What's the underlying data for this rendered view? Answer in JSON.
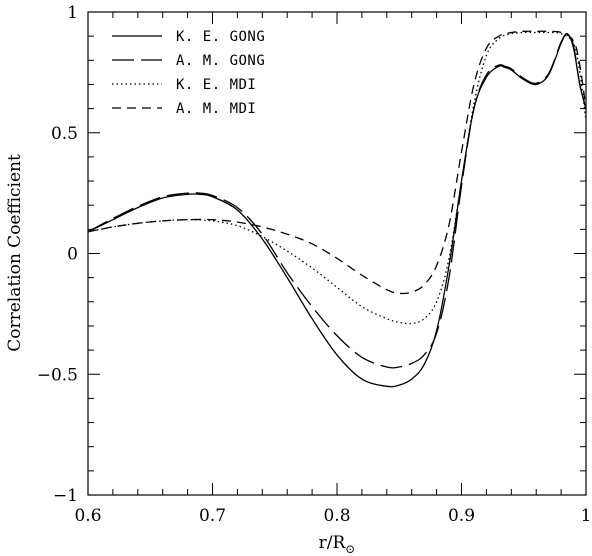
{
  "chart_data": {
    "type": "line",
    "title": "",
    "xlabel": "r/R",
    "xlabel_subscript": "⊙",
    "ylabel": "Correlation Coefficient",
    "xlim": [
      0.6,
      1.0
    ],
    "ylim": [
      -1,
      1
    ],
    "grid": false,
    "legend_position": "top-left",
    "x_ticks": [
      {
        "value": 0.6,
        "label": "0.6"
      },
      {
        "value": 0.7,
        "label": "0.7"
      },
      {
        "value": 0.8,
        "label": "0.8"
      },
      {
        "value": 0.9,
        "label": "0.9"
      },
      {
        "value": 1.0,
        "label": "1"
      }
    ],
    "y_ticks": [
      {
        "value": 1,
        "label": "1"
      },
      {
        "value": 0.5,
        "label": "0.5"
      },
      {
        "value": 0,
        "label": "0"
      },
      {
        "value": -0.5,
        "label": "−0.5"
      },
      {
        "value": -1,
        "label": "−1"
      }
    ],
    "series": [
      {
        "name": "K. E. GONG",
        "style": "solid",
        "x": [
          0.6,
          0.62,
          0.64,
          0.66,
          0.68,
          0.69,
          0.7,
          0.72,
          0.74,
          0.76,
          0.78,
          0.8,
          0.82,
          0.84,
          0.85,
          0.86,
          0.87,
          0.88,
          0.89,
          0.9,
          0.91,
          0.92,
          0.93,
          0.935,
          0.94,
          0.95,
          0.96,
          0.97,
          0.98,
          0.985,
          0.99,
          0.995,
          1.0
        ],
        "y": [
          0.09,
          0.14,
          0.19,
          0.23,
          0.245,
          0.245,
          0.235,
          0.18,
          0.06,
          -0.1,
          -0.27,
          -0.42,
          -0.52,
          -0.55,
          -0.545,
          -0.52,
          -0.46,
          -0.32,
          -0.05,
          0.3,
          0.6,
          0.73,
          0.775,
          0.77,
          0.76,
          0.72,
          0.7,
          0.74,
          0.87,
          0.91,
          0.85,
          0.7,
          0.6
        ]
      },
      {
        "name": "A. M. GONG",
        "style": "longdash",
        "x": [
          0.6,
          0.62,
          0.64,
          0.66,
          0.68,
          0.69,
          0.7,
          0.72,
          0.74,
          0.76,
          0.78,
          0.8,
          0.82,
          0.84,
          0.85,
          0.86,
          0.87,
          0.88,
          0.89,
          0.9,
          0.91,
          0.92,
          0.93,
          0.935,
          0.94,
          0.95,
          0.96,
          0.97,
          0.98,
          0.985,
          0.99,
          0.995,
          1.0
        ],
        "y": [
          0.09,
          0.145,
          0.195,
          0.235,
          0.25,
          0.25,
          0.24,
          0.19,
          0.08,
          -0.08,
          -0.22,
          -0.34,
          -0.43,
          -0.47,
          -0.47,
          -0.455,
          -0.42,
          -0.33,
          -0.1,
          0.28,
          0.6,
          0.74,
          0.78,
          0.775,
          0.765,
          0.725,
          0.705,
          0.745,
          0.875,
          0.91,
          0.86,
          0.7,
          0.6
        ]
      },
      {
        "name": "K. E. MDI",
        "style": "dotted",
        "x": [
          0.6,
          0.62,
          0.64,
          0.66,
          0.68,
          0.7,
          0.72,
          0.74,
          0.76,
          0.78,
          0.8,
          0.82,
          0.84,
          0.85,
          0.86,
          0.87,
          0.88,
          0.89,
          0.9,
          0.91,
          0.92,
          0.93,
          0.94,
          0.95,
          0.96,
          0.97,
          0.98,
          0.99,
          0.995,
          1.0
        ],
        "y": [
          0.09,
          0.11,
          0.125,
          0.135,
          0.14,
          0.135,
          0.115,
          0.07,
          0.01,
          -0.06,
          -0.14,
          -0.22,
          -0.27,
          -0.285,
          -0.29,
          -0.27,
          -0.2,
          -0.02,
          0.3,
          0.62,
          0.82,
          0.89,
          0.91,
          0.915,
          0.915,
          0.915,
          0.91,
          0.87,
          0.75,
          0.55
        ]
      },
      {
        "name": "A. M. MDI",
        "style": "dash",
        "x": [
          0.6,
          0.62,
          0.64,
          0.66,
          0.68,
          0.7,
          0.72,
          0.74,
          0.76,
          0.78,
          0.8,
          0.82,
          0.84,
          0.85,
          0.86,
          0.87,
          0.88,
          0.89,
          0.9,
          0.91,
          0.92,
          0.93,
          0.94,
          0.95,
          0.96,
          0.97,
          0.98,
          0.99,
          0.995,
          1.0
        ],
        "y": [
          0.09,
          0.11,
          0.125,
          0.135,
          0.14,
          0.14,
          0.13,
          0.11,
          0.08,
          0.04,
          -0.02,
          -0.09,
          -0.15,
          -0.165,
          -0.16,
          -0.13,
          -0.05,
          0.12,
          0.42,
          0.7,
          0.85,
          0.9,
          0.915,
          0.92,
          0.92,
          0.92,
          0.915,
          0.88,
          0.78,
          0.6
        ]
      }
    ]
  }
}
